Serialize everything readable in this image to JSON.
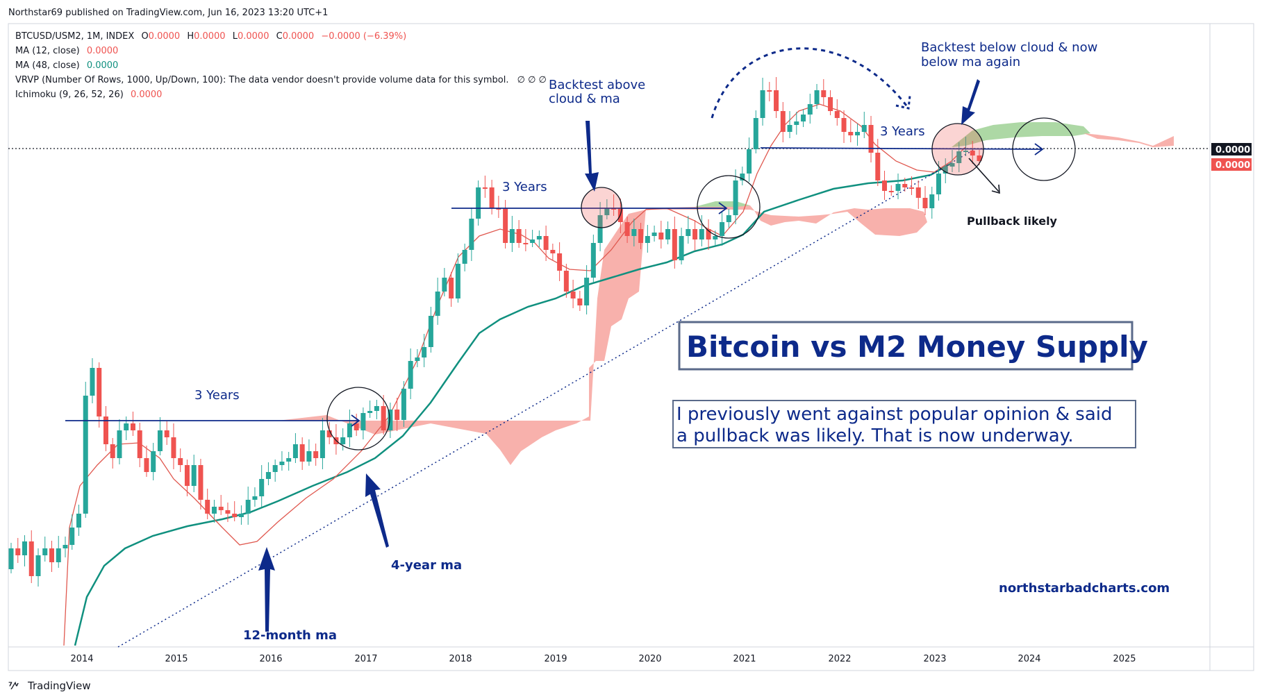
{
  "header": {
    "publisher": "Northstar69 published on TradingView.com, Jun 16, 2023 13:20 UTC+1"
  },
  "legend": {
    "symbol_line": {
      "name": "BTCUSD/USM2, 1M, INDEX",
      "o_label": "O",
      "o": "0.0000",
      "h_label": "H",
      "h": "0.0000",
      "l_label": "L",
      "l": "0.0000",
      "c_label": "C",
      "c": "0.0000",
      "change": "−0.0000 (−6.39%)"
    },
    "ma12": {
      "label": "MA (12, close)",
      "value": "0.0000"
    },
    "ma48": {
      "label": "MA (48, close)",
      "value": "0.0000"
    },
    "vrvp": {
      "label": "VRVP (Number Of Rows, 1000, Up/Down, 100): The data vendor doesn't provide volume data for this symbol.",
      "values": "∅  ∅  ∅"
    },
    "ichimoku": {
      "label": "Ichimoku (9, 26, 52, 26)",
      "value": "0.0000"
    }
  },
  "price_tags": {
    "last_black": "0.0000",
    "last_red": "0.0000"
  },
  "x_axis": {
    "ticks": [
      "2014",
      "2015",
      "2016",
      "2017",
      "2018",
      "2019",
      "2020",
      "2021",
      "2022",
      "2023",
      "2024",
      "2025"
    ]
  },
  "annotations": {
    "three_years_1": "3 Years",
    "three_years_2": "3 Years",
    "three_years_3": "3 Years",
    "backtest_above_1": "Backtest above",
    "backtest_above_2": "cloud & ma",
    "backtest_below_1": "Backtest below cloud & now",
    "backtest_below_2": "below ma again",
    "pullback_likely": "Pullback likely",
    "four_year_ma": "4-year ma",
    "twelve_month_ma": "12-month ma",
    "website": "northstarbadcharts.com",
    "title": "Bitcoin vs M2 Money Supply",
    "note_line1": "I previously went against popular opinion & said",
    "note_line2": "a pullback was likely. That is now underway."
  },
  "footer": {
    "brand": "TradingView"
  },
  "colors": {
    "bull": "#26a69a",
    "bear": "#ef5350",
    "ma12": "#e0584f",
    "ma48": "#10907f",
    "cloud_bear": "#f7a8a3",
    "cloud_bull": "#a9d6a0",
    "annotation": "#0d2a8a"
  },
  "chart_data": {
    "type": "candlestick",
    "series": [
      {
        "name": "MA (12, close)"
      },
      {
        "name": "MA (48, close)"
      },
      {
        "name": "Ichimoku (9, 26, 52, 26)"
      }
    ],
    "x_ticks": [
      "2014",
      "2015",
      "2016",
      "2017",
      "2018",
      "2019",
      "2020",
      "2021",
      "2022",
      "2023",
      "2024",
      "2025"
    ],
    "price_values_shown": "0.0000"
  }
}
